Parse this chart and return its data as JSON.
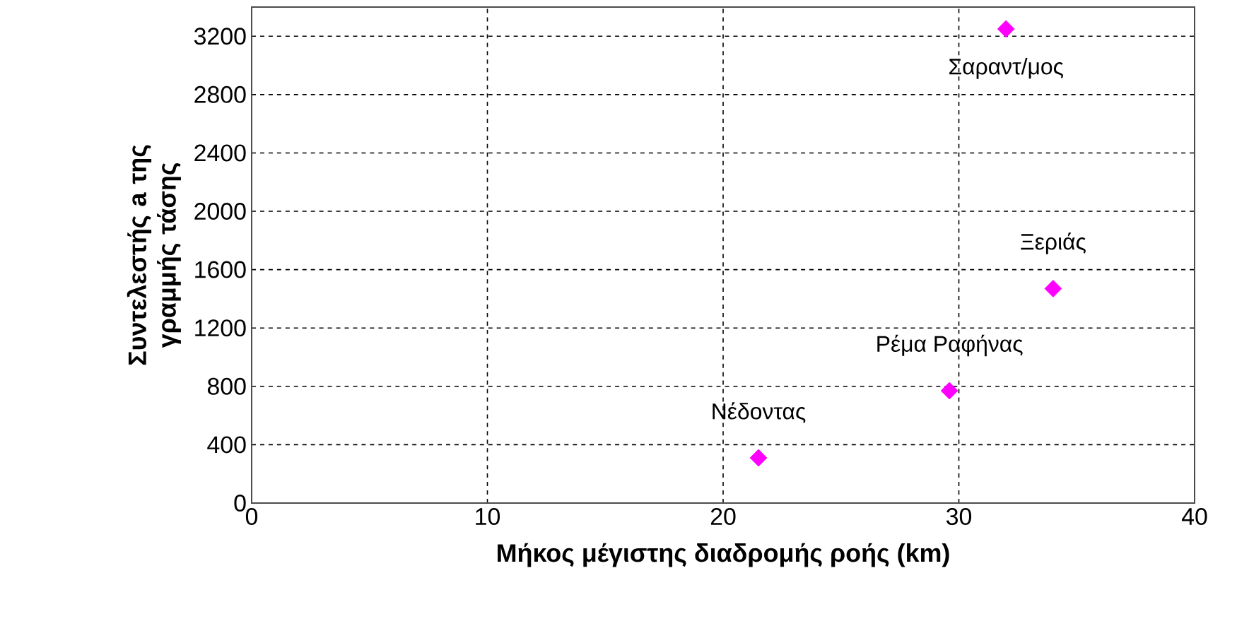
{
  "chart_data": {
    "type": "scatter",
    "xlabel": "Μήκος μέγιστης διαδρομής ροής (km)",
    "ylabel": "Συντελεστής a της γραμμής τάσης",
    "x": [
      21.5,
      29.6,
      34.0,
      32.0
    ],
    "values": [
      310,
      770,
      1470,
      3250
    ],
    "color": "#ff00ff",
    "marker": "diamond",
    "grid": true,
    "xlim": [
      0,
      40
    ],
    "xticks": [
      0,
      10,
      20,
      30,
      40
    ],
    "ylim": [
      0,
      3400
    ],
    "yticks": [
      0,
      400,
      800,
      1200,
      1600,
      2000,
      2400,
      2800,
      3200
    ],
    "annotations": [
      {
        "text": "Νέδοντας",
        "x": 21.5,
        "y": 310
      },
      {
        "text": "Ρέμα Ραφήνας",
        "x": 29.6,
        "y": 770
      },
      {
        "text": "Ξεριάς",
        "x": 34.0,
        "y": 1470
      },
      {
        "text": "Σαραντ/μος",
        "x": 32.0,
        "y": 3250
      }
    ]
  }
}
